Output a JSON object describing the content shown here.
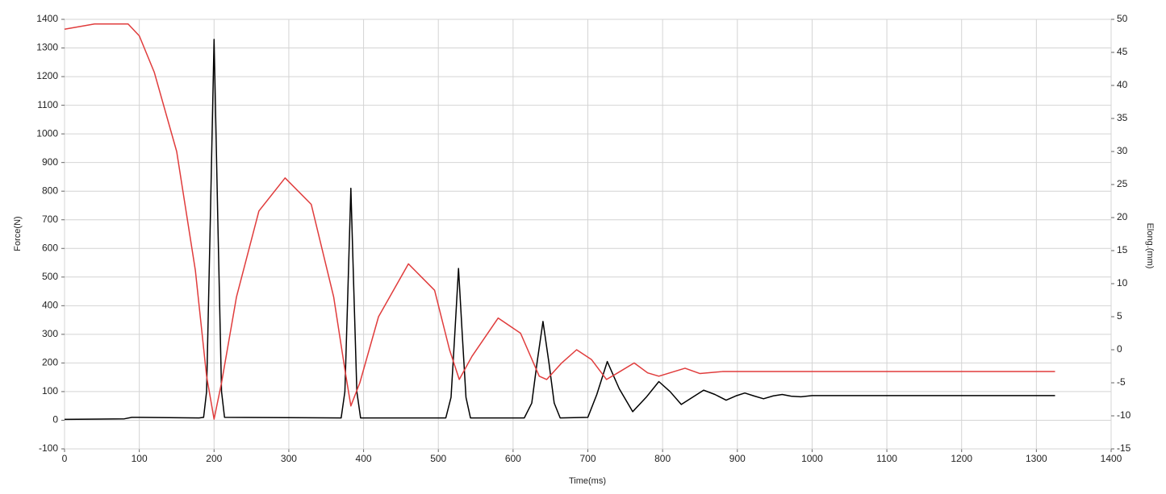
{
  "chart_data": {
    "type": "line",
    "x_label": "Time(ms)",
    "y_label": "Force(N)",
    "y2_label": "Elong.(mm)",
    "xlim": [
      0,
      1400
    ],
    "xticks": [
      0,
      100,
      200,
      300,
      400,
      500,
      600,
      700,
      800,
      900,
      1000,
      1100,
      1200,
      1300,
      1400
    ],
    "ylim": [
      -100,
      1400
    ],
    "yticks": [
      -100,
      0,
      100,
      200,
      300,
      400,
      500,
      600,
      700,
      800,
      900,
      1000,
      1100,
      1200,
      1300,
      1400
    ],
    "y2lim": [
      -15,
      50
    ],
    "y2ticks": [
      -15,
      -10,
      -5,
      0,
      5,
      10,
      15,
      20,
      25,
      30,
      35,
      40,
      45,
      50
    ],
    "grid": true,
    "series": [
      {
        "color": "#000000",
        "x": [
          0,
          80,
          90,
          100,
          180,
          186,
          190,
          195,
          200,
          205,
          210,
          214,
          370,
          375,
          379,
          383,
          387,
          391,
          396,
          510,
          517,
          522,
          527,
          532,
          537,
          543,
          615,
          625,
          632,
          640,
          648,
          655,
          663,
          700,
          712,
          726,
          742,
          760,
          778,
          795,
          810,
          825,
          840,
          855,
          870,
          885,
          898,
          910,
          922,
          935,
          948,
          960,
          972,
          985,
          1000,
          1325
        ],
        "values": [
          3,
          5,
          10,
          10,
          8,
          10,
          100,
          700,
          1330,
          700,
          100,
          10,
          8,
          100,
          450,
          810,
          450,
          100,
          8,
          8,
          80,
          300,
          530,
          300,
          80,
          8,
          8,
          60,
          200,
          345,
          200,
          60,
          8,
          10,
          90,
          205,
          110,
          30,
          80,
          135,
          100,
          55,
          80,
          105,
          90,
          70,
          85,
          95,
          85,
          75,
          85,
          90,
          84,
          82,
          86,
          86
        ]
      },
      {
        "color": "#e03c3c",
        "axis": "y2",
        "x": [
          0,
          40,
          85,
          100,
          120,
          150,
          175,
          190,
          200,
          210,
          230,
          260,
          295,
          330,
          360,
          375,
          383,
          395,
          420,
          460,
          495,
          515,
          528,
          545,
          580,
          610,
          635,
          645,
          665,
          685,
          705,
          725,
          740,
          762,
          780,
          795,
          830,
          850,
          880,
          1325
        ],
        "values": [
          48.5,
          49.3,
          49.3,
          47.5,
          42,
          30,
          12,
          -4,
          -10.5,
          -5,
          8,
          21,
          26,
          22,
          8,
          -3,
          -8.5,
          -5,
          5,
          13,
          9,
          0,
          -4.5,
          -1,
          4.8,
          2.5,
          -4,
          -4.5,
          -2,
          0,
          -1.5,
          -4.5,
          -3.5,
          -2,
          -3.5,
          -4,
          -2.8,
          -3.6,
          -3.3,
          -3.3
        ]
      }
    ]
  }
}
